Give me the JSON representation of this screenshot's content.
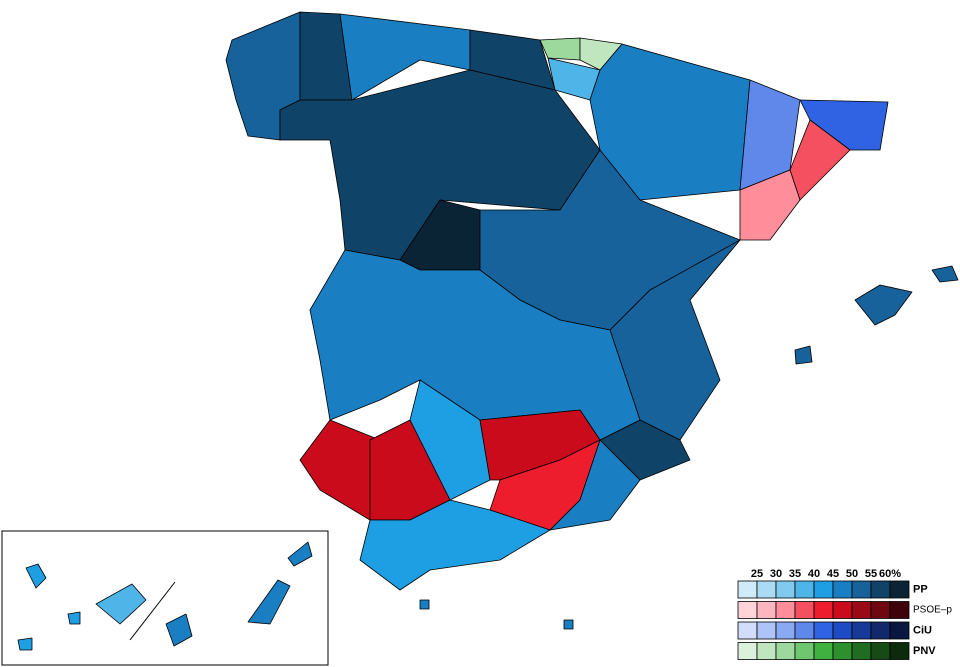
{
  "legend": {
    "ticks": [
      "25",
      "30",
      "35",
      "40",
      "45",
      "50",
      "55",
      "60%"
    ],
    "rows": [
      {
        "name": "PP",
        "colors": [
          "#cfeaf8",
          "#aadbf3",
          "#80caee",
          "#4fb4e8",
          "#1f9fe3",
          "#1a7fc2",
          "#17629a",
          "#0f4468",
          "#0a2436"
        ]
      },
      {
        "name": "PSOE–p",
        "colors": [
          "#ffd3d9",
          "#ffb5bf",
          "#ff8d9a",
          "#f5505f",
          "#ee1d2d",
          "#c90b1c",
          "#9a0916",
          "#6e0710",
          "#3e040a"
        ]
      },
      {
        "name": "CiU",
        "colors": [
          "#d1ddfb",
          "#aec3f7",
          "#8aa9f3",
          "#5f88ea",
          "#2f63e3",
          "#1e4bc4",
          "#173a98",
          "#11296b",
          "#0a1740"
        ]
      },
      {
        "name": "PNV",
        "colors": [
          "#dcf1dc",
          "#c0e6c0",
          "#9dd89d",
          "#70c670",
          "#40b040",
          "#2d8f2d",
          "#206c20",
          "#164b16",
          "#0c2a0c"
        ]
      }
    ]
  }
}
